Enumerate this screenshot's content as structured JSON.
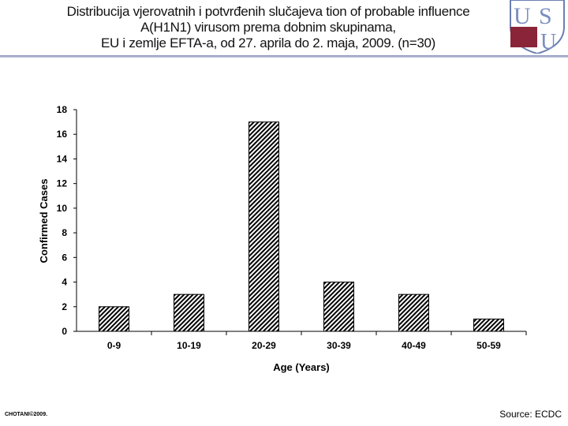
{
  "title_lines": [
    "Distribucija vjerovatnih i potvrđenih slučajeva tion of probable influence",
    "A(H1N1) virusom prema dobnim skupinama,",
    "EU i zemlje EFTA-a, od 27. aprila  do 2. maja, 2009. (n=30)"
  ],
  "logo_text": "USU",
  "footer": {
    "left": "CHOTANI©2009.",
    "right": "Source: ECDC"
  },
  "chart_data": {
    "type": "bar",
    "categories": [
      "0-9",
      "10-19",
      "20-29",
      "30-39",
      "40-49",
      "50-59"
    ],
    "values": [
      2,
      3,
      17,
      4,
      3,
      1
    ],
    "xlabel": "Age (Years)",
    "ylabel": "Confirmed Cases",
    "ylim": [
      0,
      18
    ],
    "yticks": [
      0,
      2,
      4,
      6,
      8,
      10,
      12,
      14,
      16,
      18
    ],
    "grid": false,
    "fill": "diagonal-hatch",
    "bar_color": "#000000"
  }
}
